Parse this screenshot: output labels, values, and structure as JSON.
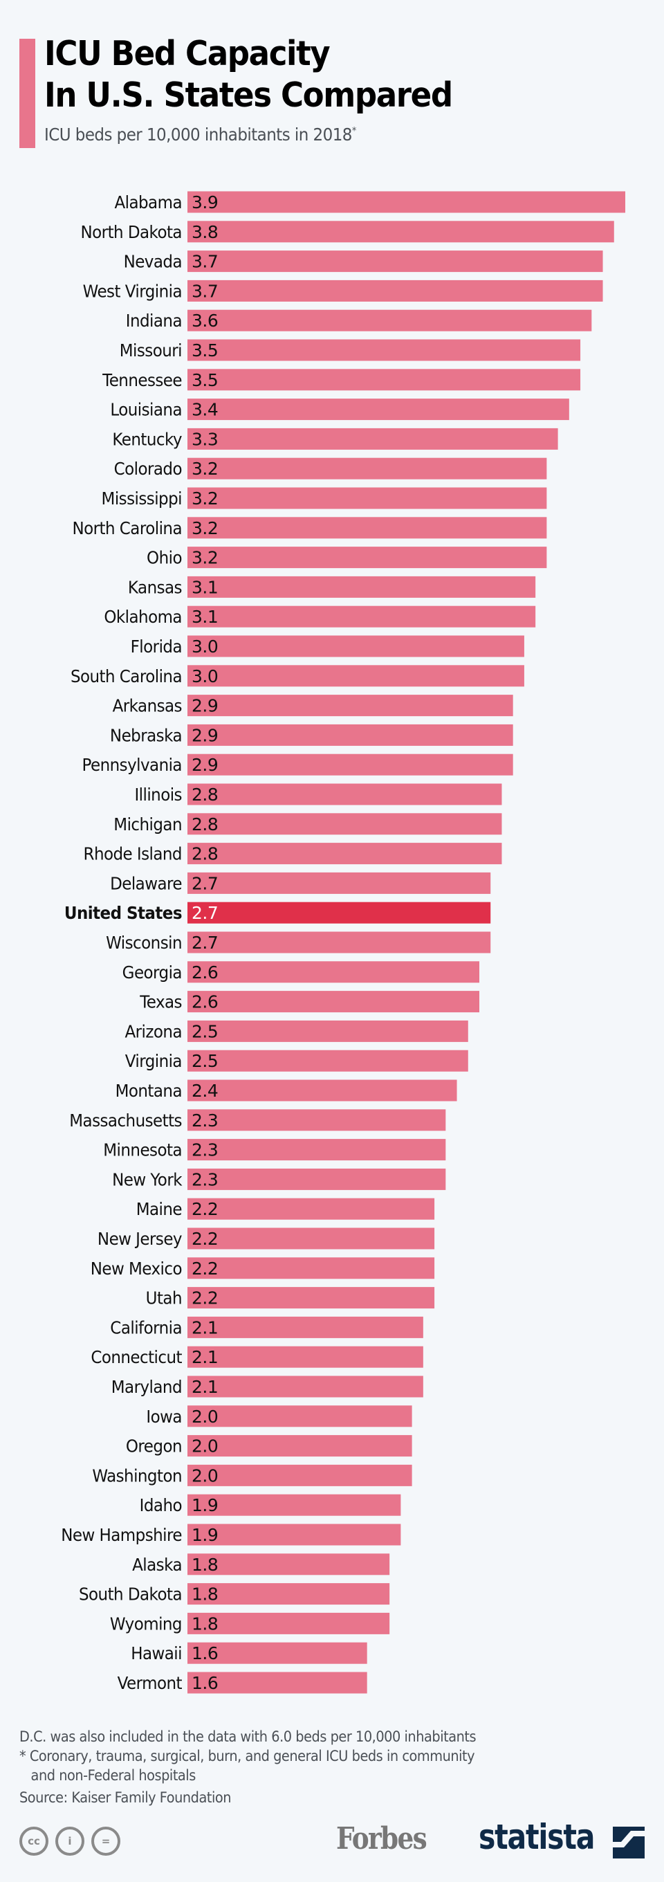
{
  "header": {
    "title_line1": "ICU Bed Capacity",
    "title_line2": "In U.S. States Compared",
    "subtitle": "ICU beds per 10,000 inhabitants in 2018",
    "subtitle_marker": "*"
  },
  "colors": {
    "bar": "#e8758c",
    "highlight_bar": "#e0304a",
    "accent": "#e8758c",
    "brand_navy": "#0f2a47"
  },
  "chart_data": {
    "type": "bar",
    "orientation": "horizontal",
    "title": "ICU Bed Capacity In U.S. States Compared",
    "subtitle": "ICU beds per 10,000 inhabitants in 2018*",
    "xlabel": "",
    "ylabel": "",
    "xlim": [
      0,
      3.9
    ],
    "grid": false,
    "highlight": "United States",
    "categories": [
      "Alabama",
      "North Dakota",
      "Nevada",
      "West Virginia",
      "Indiana",
      "Missouri",
      "Tennessee",
      "Louisiana",
      "Kentucky",
      "Colorado",
      "Mississippi",
      "North Carolina",
      "Ohio",
      "Kansas",
      "Oklahoma",
      "Florida",
      "South Carolina",
      "Arkansas",
      "Nebraska",
      "Pennsylvania",
      "Illinois",
      "Michigan",
      "Rhode Island",
      "Delaware",
      "United States",
      "Wisconsin",
      "Georgia",
      "Texas",
      "Arizona",
      "Virginia",
      "Montana",
      "Massachusetts",
      "Minnesota",
      "New York",
      "Maine",
      "New Jersey",
      "New Mexico",
      "Utah",
      "California",
      "Connecticut",
      "Maryland",
      "Iowa",
      "Oregon",
      "Washington",
      "Idaho",
      "New Hampshire",
      "Alaska",
      "South Dakota",
      "Wyoming",
      "Hawaii",
      "Vermont"
    ],
    "values": [
      3.9,
      3.8,
      3.7,
      3.7,
      3.6,
      3.5,
      3.5,
      3.4,
      3.3,
      3.2,
      3.2,
      3.2,
      3.2,
      3.1,
      3.1,
      3.0,
      3.0,
      2.9,
      2.9,
      2.9,
      2.8,
      2.8,
      2.8,
      2.7,
      2.7,
      2.7,
      2.6,
      2.6,
      2.5,
      2.5,
      2.4,
      2.3,
      2.3,
      2.3,
      2.2,
      2.2,
      2.2,
      2.2,
      2.1,
      2.1,
      2.1,
      2.0,
      2.0,
      2.0,
      1.9,
      1.9,
      1.8,
      1.8,
      1.8,
      1.6,
      1.6
    ],
    "value_labels": [
      "3.9",
      "3.8",
      "3.7",
      "3.7",
      "3.6",
      "3.5",
      "3.5",
      "3.4",
      "3.3",
      "3.2",
      "3.2",
      "3.2",
      "3.2",
      "3.1",
      "3.1",
      "3.0",
      "3.0",
      "2.9",
      "2.9",
      "2.9",
      "2.8",
      "2.8",
      "2.8",
      "2.7",
      "2.7",
      "2.7",
      "2.6",
      "2.6",
      "2.5",
      "2.5",
      "2.4",
      "2.3",
      "2.3",
      "2.3",
      "2.2",
      "2.2",
      "2.2",
      "2.2",
      "2.1",
      "2.1",
      "2.1",
      "2.0",
      "2.0",
      "2.0",
      "1.9",
      "1.9",
      "1.8",
      "1.8",
      "1.8",
      "1.6",
      "1.6"
    ]
  },
  "footer": {
    "note1": "D.C. was also included in the data with 6.0 beds per 10,000 inhabitants",
    "note2_line1": "* Coronary, trauma, surgical, burn, and general ICU beds in community",
    "note2_line2": "and non-Federal hospitals",
    "source": "Source: Kaiser Family Foundation",
    "license_icons": [
      "cc-icon",
      "attribution-icon",
      "no-derivatives-icon"
    ],
    "license_glyphs": [
      "cc",
      "i",
      "="
    ],
    "partner_logo": "Forbes",
    "brand_logo": "statista"
  }
}
